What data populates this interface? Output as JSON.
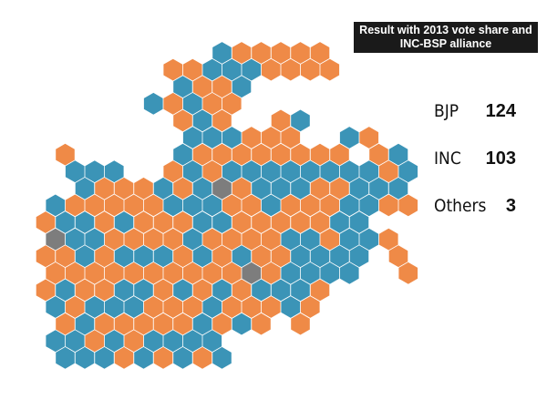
{
  "header": {
    "title_lines": [
      "Result with 2013 vote share and",
      "INC-BSP alliance"
    ]
  },
  "parties": [
    {
      "name": "BJP",
      "seats": 124,
      "color": "#ef8a47"
    },
    {
      "name": "INC",
      "seats": 103,
      "color": "#3b94b7"
    },
    {
      "name": "Others",
      "seats": 3,
      "color": "#7d7d7d"
    }
  ]
}
